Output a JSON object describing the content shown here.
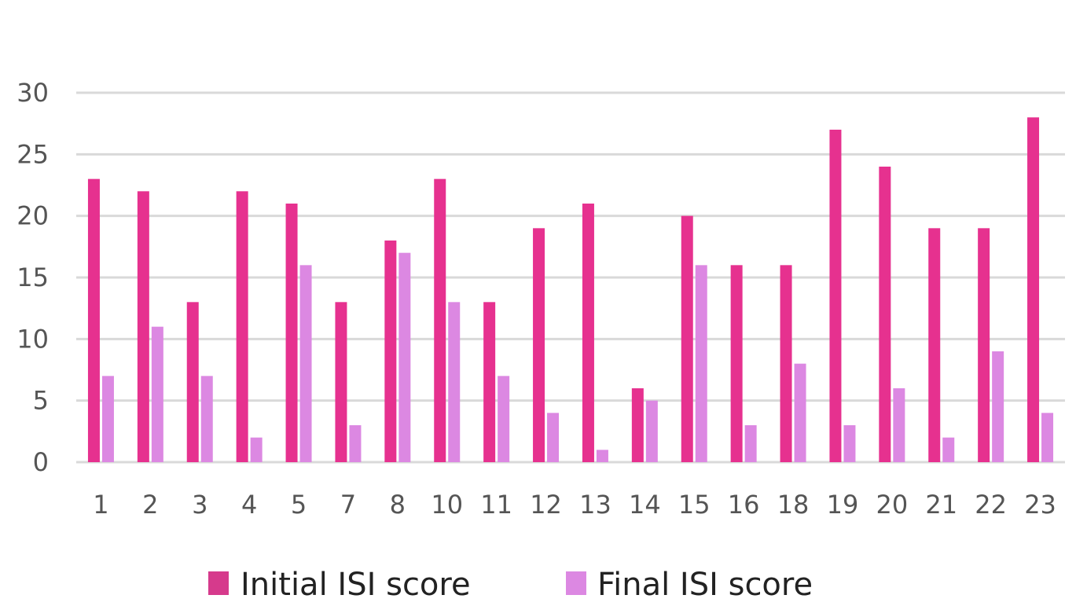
{
  "chart_data": {
    "type": "bar",
    "title": "",
    "xlabel": "",
    "ylabel": "",
    "categories": [
      "1",
      "2",
      "3",
      "4",
      "5",
      "7",
      "8",
      "10",
      "11",
      "12",
      "13",
      "14",
      "15",
      "16",
      "18",
      "19",
      "20",
      "21",
      "22",
      "23"
    ],
    "series": [
      {
        "name": "Initial ISI score",
        "color": "#e6318f",
        "values": [
          23,
          22,
          13,
          22,
          21,
          13,
          18,
          23,
          13,
          19,
          21,
          6,
          20,
          16,
          16,
          27,
          24,
          19,
          19,
          28
        ]
      },
      {
        "name": "Final ISI score",
        "color": "#dc88e2",
        "values": [
          7,
          11,
          7,
          2,
          16,
          3,
          17,
          13,
          7,
          4,
          1,
          5,
          16,
          3,
          8,
          3,
          6,
          2,
          9,
          4
        ]
      }
    ],
    "ylim": [
      0,
      30
    ],
    "yticks": [
      0,
      5,
      10,
      15,
      20,
      25,
      30
    ],
    "grid": true,
    "legend_position": "bottom-center"
  }
}
